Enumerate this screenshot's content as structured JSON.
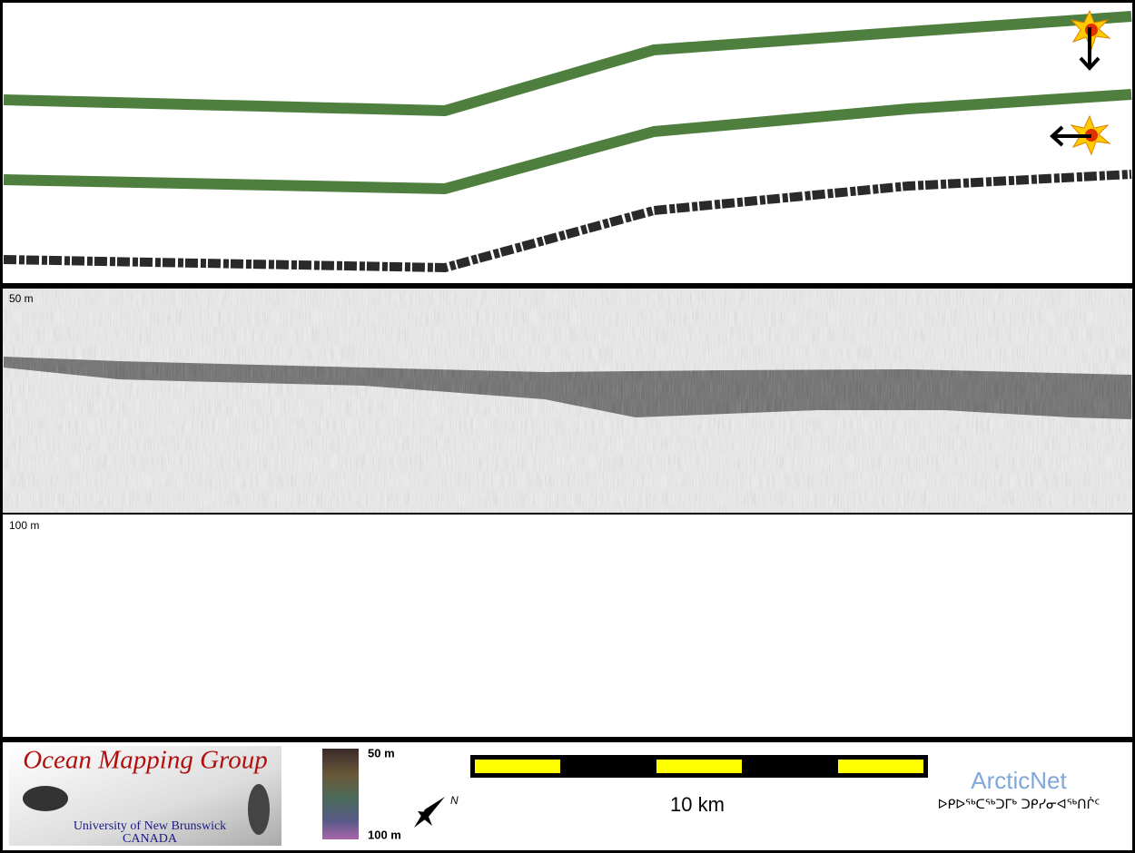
{
  "profile_panel": {
    "depth_label": "50 m"
  },
  "lower_panel": {
    "depth_label": "100 m"
  },
  "footer": {
    "logo": {
      "title": "Ocean Mapping Group",
      "university": "University of New Brunswick",
      "country": "CANADA"
    },
    "colorbar": {
      "top_label": "50 m",
      "bottom_label": "100 m"
    },
    "north_label": "N",
    "scale_bar": {
      "label": "10 km"
    },
    "partner": {
      "name": "ArcticNet",
      "tagline": "ᐅᑭᐅᖅᑕᖅᑐᒥᒃ ᑐᑭᓯᓂᐊᖅᑎᒌᑦ"
    }
  }
}
